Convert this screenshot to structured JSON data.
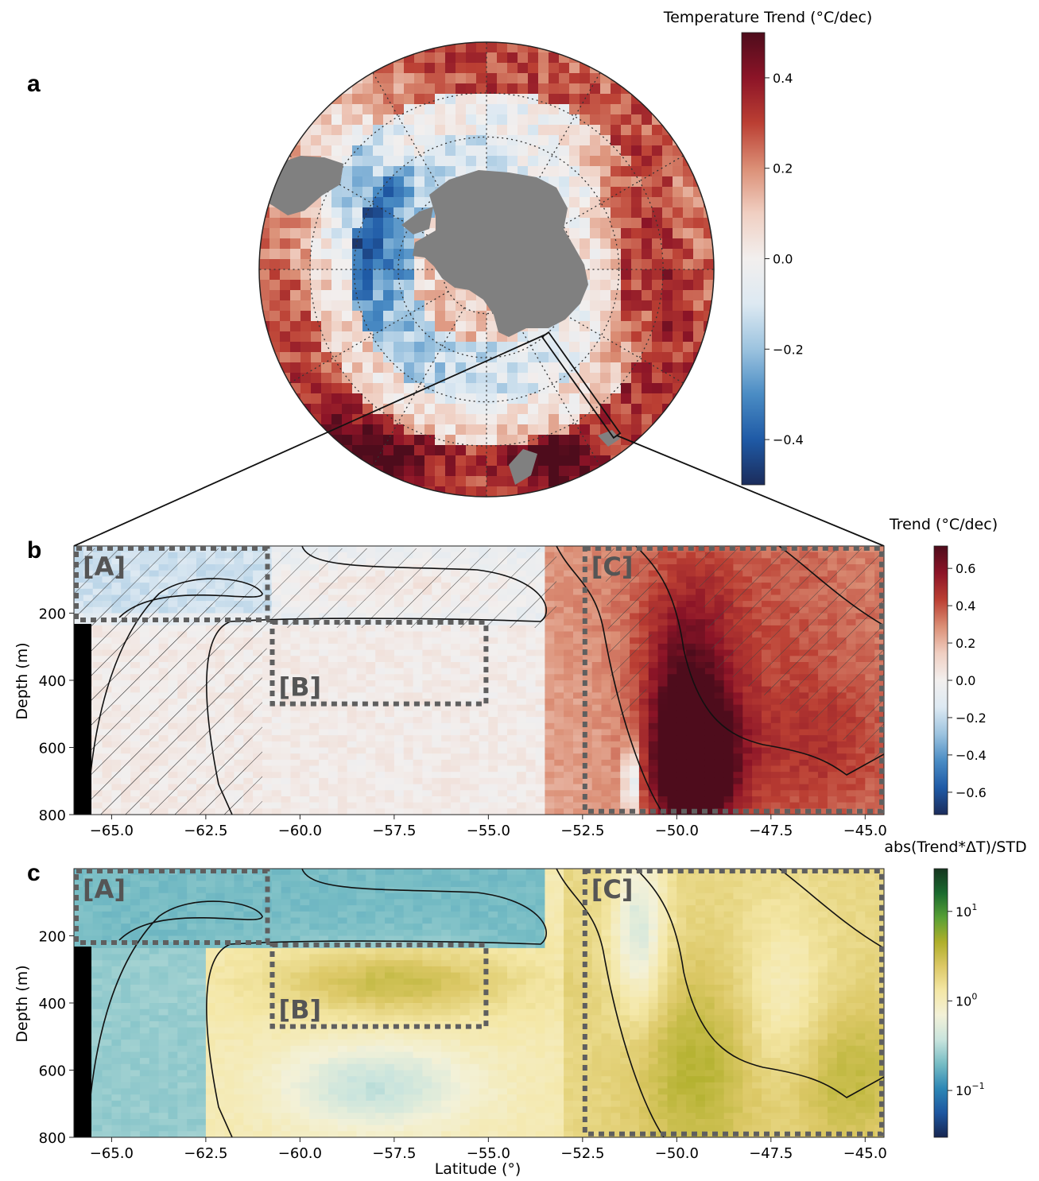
{
  "figure": {
    "panels": {
      "a": "a",
      "b": "b",
      "c": "c"
    },
    "colors": {
      "land": "#808080",
      "contour": "#111111",
      "box": "#5f5f5f",
      "box_label": "#555555",
      "mask": "#000000"
    },
    "cmap_rdbu": [
      "#1b2c5b",
      "#1f5aa6",
      "#4a8cc4",
      "#9cc3df",
      "#dde9f2",
      "#f2efee",
      "#f0cfc2",
      "#db8f76",
      "#bb3f33",
      "#8c1427",
      "#4e0c1c"
    ],
    "cmap_earth": [
      "#172650",
      "#1d56a0",
      "#2d87b5",
      "#76bcc4",
      "#c9e4dd",
      "#f3f1d8",
      "#f4e7a6",
      "#dcc866",
      "#afaf2a",
      "#58a035",
      "#1b6a2f",
      "#15351f"
    ]
  },
  "chart_data": [
    {
      "id": "a",
      "type": "heatmap",
      "projection": "south-polar-stereographic",
      "colorbar": {
        "label": "Temperature Trend (°C/dec)",
        "range": [
          -0.5,
          0.5
        ],
        "ticks": [
          0.4,
          0.2,
          0.0,
          -0.2,
          -0.4
        ],
        "tick_labels": [
          "0.4",
          "0.2",
          "0.0",
          "−0.2",
          "−0.4"
        ]
      },
      "grid": true,
      "section_longitude_deg": 30,
      "section_latitude_range": [
        -66,
        -44.5
      ]
    },
    {
      "id": "b",
      "type": "heatmap",
      "x": {
        "range": [
          -66,
          -44.5
        ],
        "ticks": [
          -65,
          -62.5,
          -60,
          -57.5,
          -55,
          -52.5,
          -50,
          -47.5,
          -45
        ],
        "tick_labels": [
          "−65.0",
          "−62.5",
          "−60.0",
          "−57.5",
          "−55.0",
          "−52.5",
          "−50.0",
          "−47.5",
          "−45.0"
        ]
      },
      "y": {
        "label": "Depth (m)",
        "range": [
          0,
          800
        ],
        "ticks": [
          200,
          400,
          600,
          800
        ],
        "tick_labels": [
          "200",
          "400",
          "600",
          "800"
        ]
      },
      "colorbar": {
        "label": "Trend (°C/dec)",
        "range": [
          -0.72,
          0.72
        ],
        "ticks": [
          0.6,
          0.4,
          0.2,
          0.0,
          -0.2,
          -0.4,
          -0.6
        ],
        "tick_labels": [
          "0.6",
          "0.4",
          "0.2",
          "0.0",
          "−0.2",
          "−0.4",
          "−0.6"
        ]
      },
      "boxes": [
        {
          "label": "[A]",
          "lat": [
            -66,
            -60.8
          ],
          "depth": [
            0,
            220
          ]
        },
        {
          "label": "[B]",
          "lat": [
            -60.8,
            -55
          ],
          "depth": [
            220,
            470
          ]
        },
        {
          "label": "[C]",
          "lat": [
            -52.5,
            -44.5
          ],
          "depth": [
            0,
            790
          ]
        }
      ],
      "hatched": "non-significant trends"
    },
    {
      "id": "c",
      "type": "heatmap",
      "x": {
        "label": "Latitude (°)",
        "range": [
          -66,
          -44.5
        ],
        "ticks": [
          -65,
          -62.5,
          -60,
          -57.5,
          -55,
          -52.5,
          -50,
          -47.5,
          -45
        ],
        "tick_labels": [
          "−65.0",
          "−62.5",
          "−60.0",
          "−57.5",
          "−55.0",
          "−52.5",
          "−50.0",
          "−47.5",
          "−45.0"
        ]
      },
      "y": {
        "label": "Depth (m)",
        "range": [
          0,
          800
        ],
        "ticks": [
          200,
          400,
          600,
          800
        ],
        "tick_labels": [
          "200",
          "400",
          "600",
          "800"
        ]
      },
      "colorbar": {
        "label": "abs(Trend*ΔT)/STD",
        "scale": "log",
        "range": [
          0.03,
          30
        ],
        "ticks": [
          10,
          1,
          0.1
        ],
        "tick_labels": [
          [
            "10",
            "1"
          ],
          [
            "10",
            "0"
          ],
          [
            "10",
            "−1"
          ]
        ]
      },
      "boxes": [
        {
          "label": "[A]",
          "lat": [
            -66,
            -60.8
          ],
          "depth": [
            0,
            220
          ]
        },
        {
          "label": "[B]",
          "lat": [
            -60.8,
            -55
          ],
          "depth": [
            220,
            470
          ]
        },
        {
          "label": "[C]",
          "lat": [
            -52.5,
            -44.5
          ],
          "depth": [
            0,
            790
          ]
        }
      ]
    }
  ]
}
